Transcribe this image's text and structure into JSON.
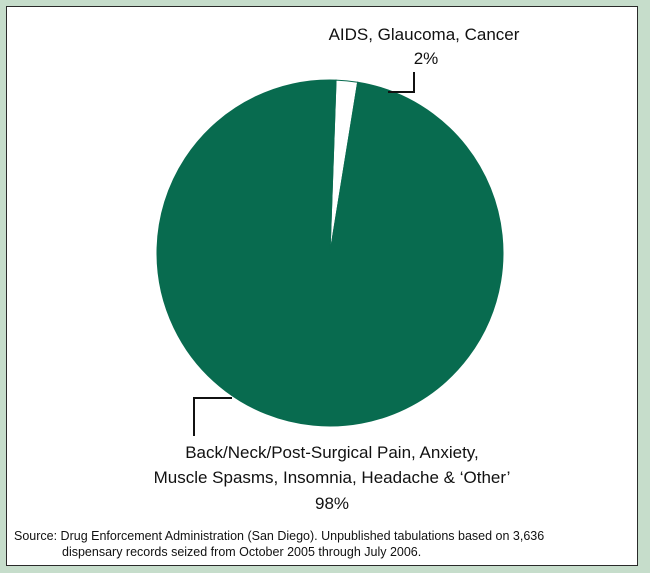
{
  "colors": {
    "page_background": "#c6ddcb",
    "slice_main": "#086b4f",
    "slice_small": "#ffffff",
    "leader": "#111111"
  },
  "chart_data": {
    "type": "pie",
    "slices": [
      {
        "label": "AIDS, Glaucoma, Cancer",
        "value": 2,
        "value_label": "2%"
      },
      {
        "label_lines": [
          "Back/Neck/Post-Surgical Pain, Anxiety,",
          "Muscle Spasms, Insomnia, Headache & ‘Other’"
        ],
        "value": 98,
        "value_label": "98%"
      }
    ],
    "start_angle_deg": 2,
    "direction": "clockwise"
  },
  "source": {
    "line1": "Source: Drug Enforcement Administration (San Diego). Unpublished tabulations based on 3,636",
    "line2": "dispensary records seized from October 2005 through July 2006."
  }
}
